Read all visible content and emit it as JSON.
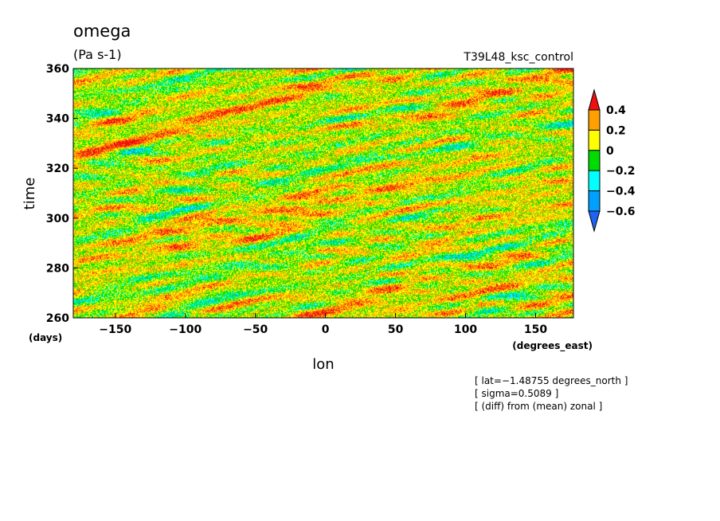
{
  "chart_data": {
    "type": "heatmap",
    "title": "omega",
    "units": "(Pa s-1)",
    "run_label": "T39L48_ksc_control",
    "xlabel": "lon",
    "ylabel": "time",
    "x_units": "(degrees_east)",
    "y_units": "(days)",
    "xlim": [
      -180,
      177
    ],
    "ylim": [
      260,
      360
    ],
    "x_ticks": [
      -150,
      -100,
      -50,
      0,
      50,
      100,
      150
    ],
    "y_ticks": [
      260,
      280,
      300,
      320,
      340,
      360
    ],
    "x_tick_labels": [
      "−150",
      "−100",
      "−50",
      "0",
      "50",
      "100",
      "150"
    ],
    "y_tick_labels": [
      "260",
      "280",
      "300",
      "320",
      "340",
      "360"
    ],
    "colorbar": {
      "levels": [
        -0.6,
        -0.4,
        -0.2,
        0,
        0.2,
        0.4
      ],
      "level_labels": [
        "−0.6",
        "−0.4",
        "−0.2",
        "0",
        "0.2",
        "0.4"
      ],
      "colors": [
        "#1e64f0",
        "#00a0ff",
        "#00ffff",
        "#00dc00",
        "#ffff00",
        "#ffa000",
        "#f01010"
      ],
      "extend": "both"
    },
    "annotations": [
      "[ lat=−1.48755 degrees_north ]",
      "[ sigma=0.5089 ]",
      "[ (diff) from (mean) zonal ]"
    ]
  }
}
